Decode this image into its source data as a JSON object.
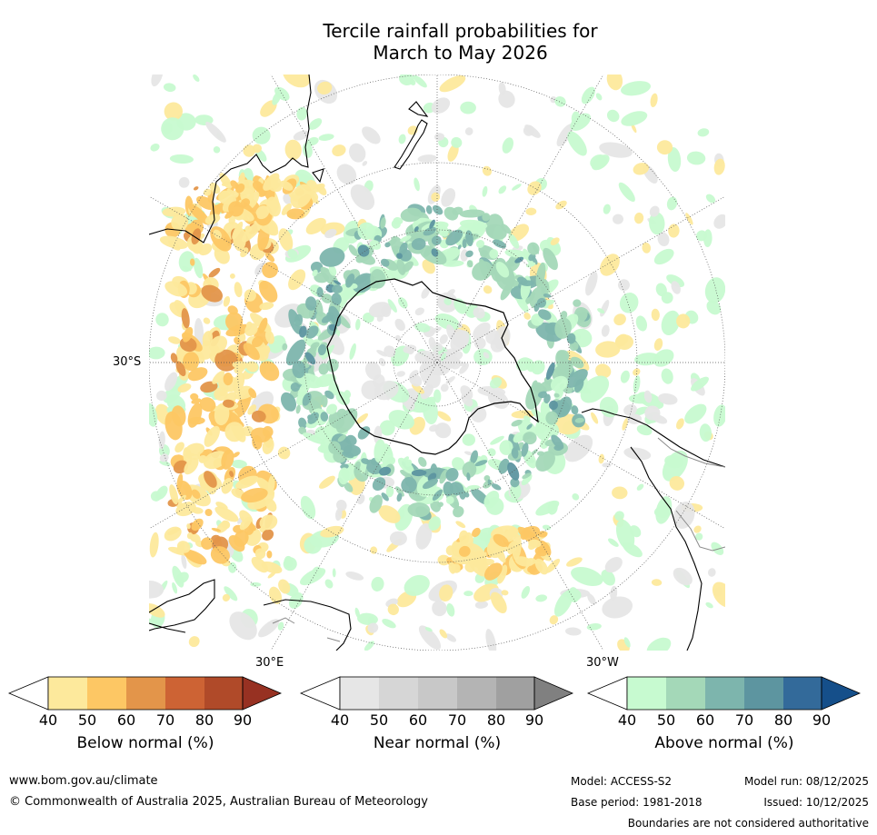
{
  "title_line1": "Tercile rainfall probabilities for",
  "title_line2": "March to May 2026",
  "map": {
    "labels": {
      "lat_30s": "30°S",
      "lon_30e": "30°E",
      "lon_30w": "30°W"
    },
    "colors": {
      "below": [
        "#fde99c",
        "#fdc764",
        "#e3954a",
        "#cd6334",
        "#b04a29",
        "#973122"
      ],
      "near": [
        "#e6e6e6",
        "#d6d6d6",
        "#c8c8c8",
        "#b4b4b4",
        "#a0a0a0",
        "#808080"
      ],
      "above": [
        "#c7fad0",
        "#a4d8b8",
        "#7db5ad",
        "#5d95a0",
        "#336a9a",
        "#154f8a"
      ],
      "coast": "#000000",
      "border": "#8a8a8a"
    }
  },
  "colorbars": [
    {
      "title": "Below normal (%)",
      "ticks": [
        "40",
        "50",
        "60",
        "70",
        "80",
        "90"
      ],
      "colors": [
        "#fde99c",
        "#fdc764",
        "#e3954a",
        "#cd6334",
        "#b04a29",
        "#973122"
      ]
    },
    {
      "title": "Near normal (%)",
      "ticks": [
        "40",
        "50",
        "60",
        "70",
        "80",
        "90"
      ],
      "colors": [
        "#e6e6e6",
        "#d6d6d6",
        "#c8c8c8",
        "#b4b4b4",
        "#a0a0a0",
        "#808080"
      ]
    },
    {
      "title": "Above normal (%)",
      "ticks": [
        "40",
        "50",
        "60",
        "70",
        "80",
        "90"
      ],
      "colors": [
        "#c7fad0",
        "#a4d8b8",
        "#7db5ad",
        "#5d95a0",
        "#336a9a",
        "#154f8a"
      ]
    }
  ],
  "footer": {
    "website": "www.bom.gov.au/climate",
    "copyright": "© Commonwealth of Australia 2025, Australian Bureau of Meteorology",
    "model": "Model: ACCESS-S2",
    "base_period": "Base period: 1981-2018",
    "model_run": "Model run: 08/12/2025",
    "issued": "Issued: 10/12/2025",
    "disclaimer": "Boundaries are not considered authoritative"
  }
}
